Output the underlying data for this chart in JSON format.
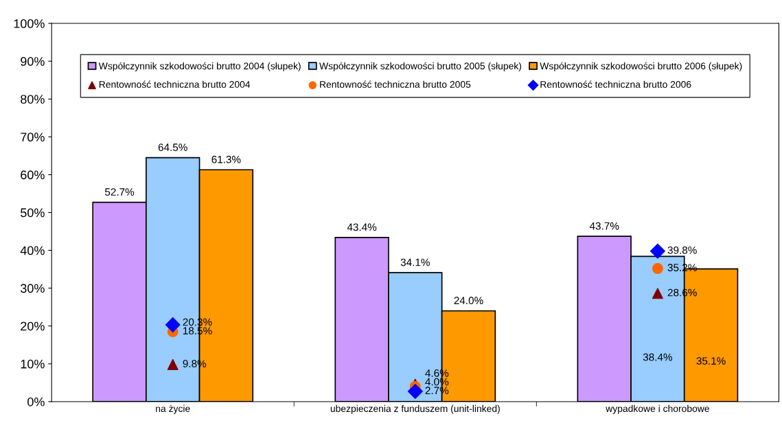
{
  "chart_data": {
    "type": "bar",
    "categories": [
      "na życie",
      "ubezpieczenia z funduszem (unit-linked)",
      "wypadkowe i chorobowe"
    ],
    "series": [
      {
        "name": "Współczynnik szkodowości brutto 2004 (słupek)",
        "color": "#cc99ff",
        "values": [
          52.7,
          43.4,
          43.7
        ],
        "value_labels": [
          "52.7%",
          "43.4%",
          "43.7%"
        ]
      },
      {
        "name": "Współczynnik szkodowości brutto 2005 (słupek)",
        "color": "#99ccff",
        "values": [
          64.5,
          34.1,
          38.4
        ],
        "value_labels": [
          "64.5%",
          "34.1%",
          "38.4%"
        ]
      },
      {
        "name": "Współczynnik szkodowości brutto 2006 (słupek)",
        "color": "#ff9900",
        "values": [
          61.3,
          24.0,
          35.1
        ],
        "value_labels": [
          "61.3%",
          "24.0%",
          "35.1%"
        ]
      },
      {
        "name": "Rentowność techniczna brutto 2004",
        "type": "scatter",
        "marker": "triangle",
        "color": "#800000",
        "values": [
          9.8,
          4.6,
          28.6
        ],
        "value_labels": [
          "9.8%",
          "4.6%",
          "28.6%"
        ]
      },
      {
        "name": "Rentowność techniczna brutto 2005",
        "type": "scatter",
        "marker": "circle",
        "color": "#ff6600",
        "values": [
          18.5,
          4.0,
          35.2
        ],
        "value_labels": [
          "18.5%",
          "4.0%",
          "35.2%"
        ]
      },
      {
        "name": "Rentowność techniczna brutto 2006",
        "type": "scatter",
        "marker": "diamond",
        "color": "#0000ff",
        "values": [
          20.3,
          2.7,
          39.8
        ],
        "value_labels": [
          "20.3%",
          "2.7%",
          "39.8%"
        ]
      }
    ],
    "ylim": [
      0,
      100
    ],
    "yticks": [
      {
        "value": 0,
        "label": "0%"
      },
      {
        "value": 10,
        "label": "10%"
      },
      {
        "value": 20,
        "label": "20%"
      },
      {
        "value": 30,
        "label": "30%"
      },
      {
        "value": 40,
        "label": "40%"
      },
      {
        "value": 50,
        "label": "50%"
      },
      {
        "value": 60,
        "label": "60%"
      },
      {
        "value": 70,
        "label": "70%"
      },
      {
        "value": 80,
        "label": "80%"
      },
      {
        "value": 90,
        "label": "90%"
      },
      {
        "value": 100,
        "label": "100%"
      }
    ],
    "grid": false,
    "legend": "top"
  }
}
